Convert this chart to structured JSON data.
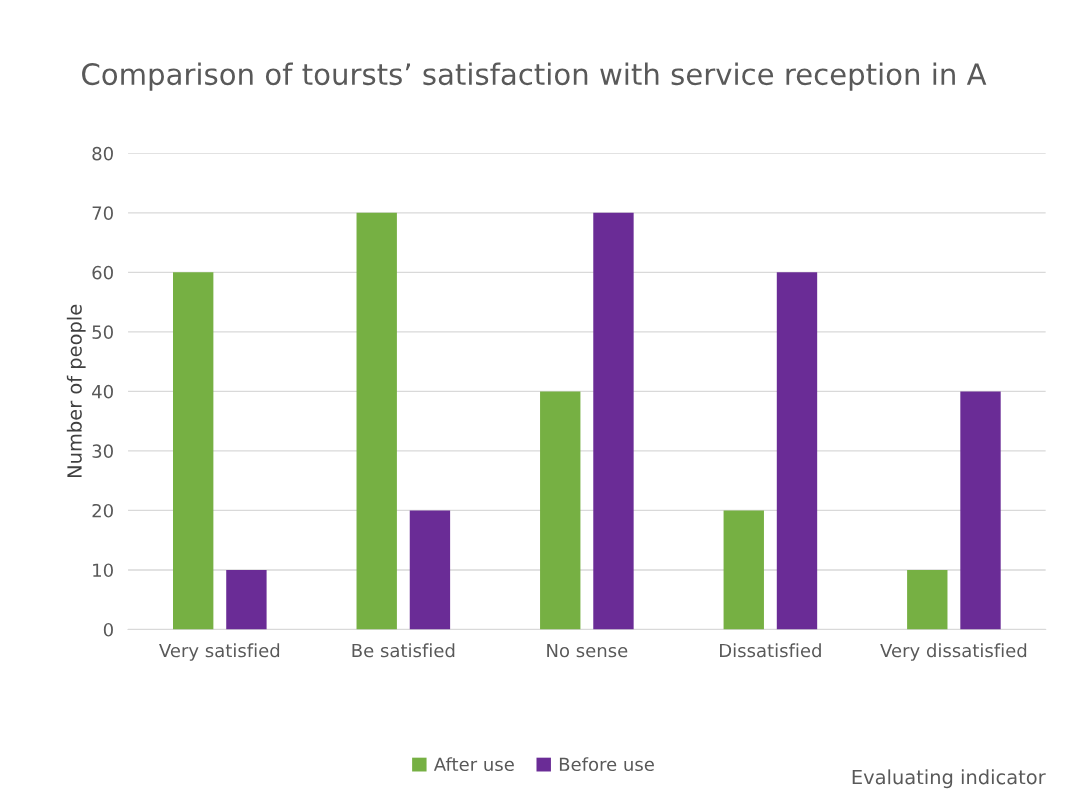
{
  "chart_data": {
    "type": "bar",
    "title": "Comparison of toursts’ satisfaction with service reception in A",
    "ylabel": "Number of people",
    "annotations": [
      "Evaluating indicator"
    ],
    "categories": [
      "Very satisfied",
      "Be satisfied",
      "No sense",
      "Dissatisfied",
      "Very dissatisfied"
    ],
    "series": [
      {
        "name": "After use",
        "color": "#76b043",
        "values": [
          60,
          70,
          40,
          20,
          10
        ]
      },
      {
        "name": "Before use",
        "color": "#6a2c96",
        "values": [
          10,
          20,
          70,
          60,
          40
        ]
      }
    ],
    "ylim": [
      0,
      80
    ],
    "yticks": [
      0,
      10,
      20,
      30,
      40,
      50,
      60,
      70,
      80
    ],
    "grid": "y",
    "legend": "bottom"
  }
}
